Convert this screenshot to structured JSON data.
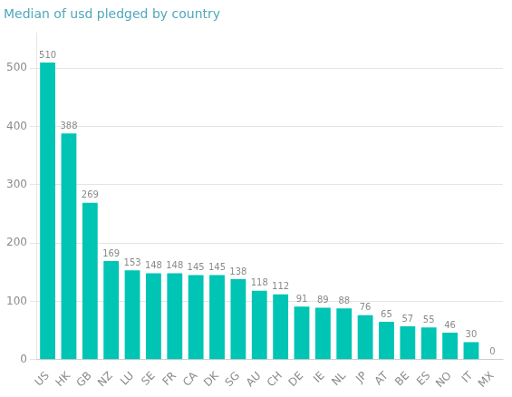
{
  "chart_data": {
    "type": "bar",
    "title": "Median of usd pledged by country",
    "categories": [
      "US",
      "HK",
      "GB",
      "NZ",
      "LU",
      "SE",
      "FR",
      "CA",
      "DK",
      "SG",
      "AU",
      "CH",
      "DE",
      "IE",
      "NL",
      "JP",
      "AT",
      "BE",
      "ES",
      "NO",
      "IT",
      "MX"
    ],
    "values": [
      510,
      388,
      269,
      169,
      153,
      148,
      148,
      145,
      145,
      138,
      118,
      112,
      91,
      89,
      88,
      76,
      65,
      57,
      55,
      46,
      30,
      0
    ],
    "color": "#00c4b4",
    "ylim": [
      0,
      560
    ],
    "yticks": [
      0,
      100,
      200,
      300,
      400,
      500
    ],
    "grid": true,
    "data_labels": true
  }
}
